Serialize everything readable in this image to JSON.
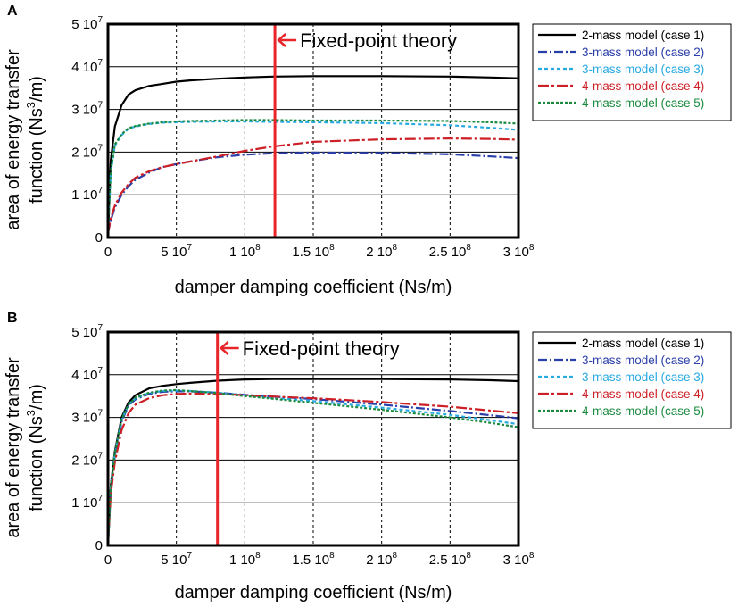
{
  "chart_data": [
    {
      "panel_label": "A",
      "type": "line",
      "xlabel": "damper damping coefficient (Ns/m)",
      "ylabel": {
        "line1": "area of energy transfer",
        "line2_pre": "function (Ns",
        "line2_sup": "3",
        "line2_post": "/m)"
      },
      "xlim": [
        0,
        300000000
      ],
      "ylim": [
        0,
        50000000
      ],
      "grid": {
        "x": "dashed",
        "y": "solid"
      },
      "legend_placement": "right",
      "x_ticks": [
        {
          "value": 0,
          "mant": "0",
          "exp": ""
        },
        {
          "value": 50000000,
          "mant": "5 10",
          "exp": "7"
        },
        {
          "value": 100000000,
          "mant": "1 10",
          "exp": "8"
        },
        {
          "value": 150000000,
          "mant": "1.5 10",
          "exp": "8"
        },
        {
          "value": 200000000,
          "mant": "2 10",
          "exp": "8"
        },
        {
          "value": 250000000,
          "mant": "2.5 10",
          "exp": "8"
        },
        {
          "value": 300000000,
          "mant": "3 10",
          "exp": "8"
        }
      ],
      "y_ticks": [
        {
          "value": 0,
          "mant": "0",
          "exp": ""
        },
        {
          "value": 10000000,
          "mant": "1 10",
          "exp": "7"
        },
        {
          "value": 20000000,
          "mant": "2 10",
          "exp": "7"
        },
        {
          "value": 30000000,
          "mant": "3 10",
          "exp": "7"
        },
        {
          "value": 40000000,
          "mant": "4 10",
          "exp": "7"
        },
        {
          "value": 50000000,
          "mant": "5 10",
          "exp": "7"
        }
      ],
      "annotation": {
        "text": "Fixed-point theory",
        "x": 122000000,
        "color": "#e8262a"
      },
      "x": [
        0,
        2000000,
        5000000,
        10000000,
        15000000,
        20000000,
        30000000,
        40000000,
        50000000,
        60000000,
        80000000,
        100000000,
        120000000,
        150000000,
        200000000,
        250000000,
        280000000,
        300000000
      ],
      "series": [
        {
          "name": "2-mass model (case 1)",
          "color": "#000000",
          "dash": "",
          "values": [
            0,
            18000000,
            26000000,
            31000000,
            33500000,
            34500000,
            35500000,
            36000000,
            36500000,
            36800000,
            37200000,
            37500000,
            37700000,
            37800000,
            37800000,
            37700000,
            37500000,
            37300000
          ]
        },
        {
          "name": "3-mass model (case 2)",
          "color": "#2a3ea8",
          "dash": "10,3,2,3",
          "values": [
            1000000,
            4000000,
            7000000,
            10000000,
            12000000,
            13500000,
            15200000,
            16500000,
            17200000,
            17800000,
            18800000,
            19400000,
            19700000,
            19900000,
            19800000,
            19500000,
            19000000,
            18600000
          ]
        },
        {
          "name": "3-mass model (case 3)",
          "color": "#27a9e1",
          "dash": "4,3",
          "values": [
            1000000,
            15000000,
            21500000,
            24000000,
            25500000,
            26000000,
            26600000,
            26900000,
            27000000,
            27100000,
            27200000,
            27200000,
            27100000,
            27000000,
            26800000,
            26300000,
            25700000,
            25200000
          ]
        },
        {
          "name": "4-mass model (case 4)",
          "color": "#cc1f26",
          "dash": "12,3,3,3",
          "values": [
            1000000,
            4500000,
            7500000,
            10500000,
            12500000,
            14000000,
            15500000,
            16500000,
            17200000,
            17800000,
            19000000,
            20300000,
            21300000,
            22400000,
            23000000,
            23200000,
            23100000,
            22900000
          ]
        },
        {
          "name": "4-mass model (case 5)",
          "color": "#1a8a3e",
          "dash": "3,2",
          "values": [
            1000000,
            15500000,
            21800000,
            24200000,
            25600000,
            26100000,
            26700000,
            27000000,
            27200000,
            27300000,
            27400000,
            27500000,
            27500000,
            27400000,
            27400000,
            27300000,
            27000000,
            26700000
          ]
        }
      ]
    },
    {
      "panel_label": "B",
      "type": "line",
      "xlabel": "damper damping coefficient (Ns/m)",
      "ylabel": {
        "line1": "area of energy transfer",
        "line2_pre": "function (Ns",
        "line2_sup": "3",
        "line2_post": "/m)"
      },
      "xlim": [
        0,
        300000000
      ],
      "ylim": [
        0,
        50000000
      ],
      "grid": {
        "x": "dashed",
        "y": "solid"
      },
      "legend_placement": "right",
      "x_ticks": [
        {
          "value": 0,
          "mant": "0",
          "exp": ""
        },
        {
          "value": 50000000,
          "mant": "5 10",
          "exp": "7"
        },
        {
          "value": 100000000,
          "mant": "1 10",
          "exp": "8"
        },
        {
          "value": 150000000,
          "mant": "1.5 10",
          "exp": "8"
        },
        {
          "value": 200000000,
          "mant": "2 10",
          "exp": "8"
        },
        {
          "value": 250000000,
          "mant": "2.5 10",
          "exp": "8"
        },
        {
          "value": 300000000,
          "mant": "3 10",
          "exp": "8"
        }
      ],
      "y_ticks": [
        {
          "value": 0,
          "mant": "0",
          "exp": ""
        },
        {
          "value": 10000000,
          "mant": "1 10",
          "exp": "7"
        },
        {
          "value": 20000000,
          "mant": "2 10",
          "exp": "7"
        },
        {
          "value": 30000000,
          "mant": "3 10",
          "exp": "7"
        },
        {
          "value": 40000000,
          "mant": "4 10",
          "exp": "7"
        },
        {
          "value": 50000000,
          "mant": "5 10",
          "exp": "7"
        }
      ],
      "annotation": {
        "text": "Fixed-point theory",
        "x": 80000000,
        "color": "#e8262a"
      },
      "x": [
        0,
        2000000,
        5000000,
        10000000,
        15000000,
        20000000,
        30000000,
        40000000,
        50000000,
        60000000,
        80000000,
        100000000,
        120000000,
        150000000,
        200000000,
        250000000,
        280000000,
        300000000
      ],
      "series": [
        {
          "name": "2-mass model (case 1)",
          "color": "#000000",
          "dash": "",
          "values": [
            0,
            14000000,
            22000000,
            30000000,
            33500000,
            35200000,
            36800000,
            37400000,
            37800000,
            38100000,
            38600000,
            38900000,
            39000000,
            39000000,
            39000000,
            38900000,
            38700000,
            38500000
          ]
        },
        {
          "name": "3-mass model (case 2)",
          "color": "#2a3ea8",
          "dash": "10,3,2,3",
          "values": [
            0,
            13000000,
            21000000,
            29000000,
            32800000,
            34200000,
            35500000,
            36000000,
            36100000,
            36100000,
            35800000,
            35300000,
            34900000,
            34300000,
            33000000,
            31500000,
            30500000,
            29800000
          ]
        },
        {
          "name": "3-mass model (case 3)",
          "color": "#27a9e1",
          "dash": "4,3",
          "values": [
            0,
            13500000,
            21500000,
            29500000,
            33000000,
            34500000,
            35700000,
            36200000,
            36300000,
            36200000,
            35800000,
            35200000,
            34600000,
            33800000,
            32300000,
            30600000,
            29300000,
            28400000
          ]
        },
        {
          "name": "4-mass model (case 4)",
          "color": "#cc1f26",
          "dash": "12,3,3,3",
          "values": [
            0,
            12000000,
            19500000,
            27000000,
            31000000,
            33000000,
            34500000,
            35200000,
            35500000,
            35600000,
            35500000,
            35200000,
            34900000,
            34500000,
            33600000,
            32500000,
            31600000,
            31000000
          ]
        },
        {
          "name": "4-mass model (case 5)",
          "color": "#1a8a3e",
          "dash": "3,2",
          "values": [
            0,
            13500000,
            21500000,
            29500000,
            33000000,
            34600000,
            35800000,
            36300000,
            36400000,
            36200000,
            35700000,
            35000000,
            34400000,
            33400000,
            31800000,
            30000000,
            28700000,
            27700000
          ]
        }
      ]
    }
  ]
}
